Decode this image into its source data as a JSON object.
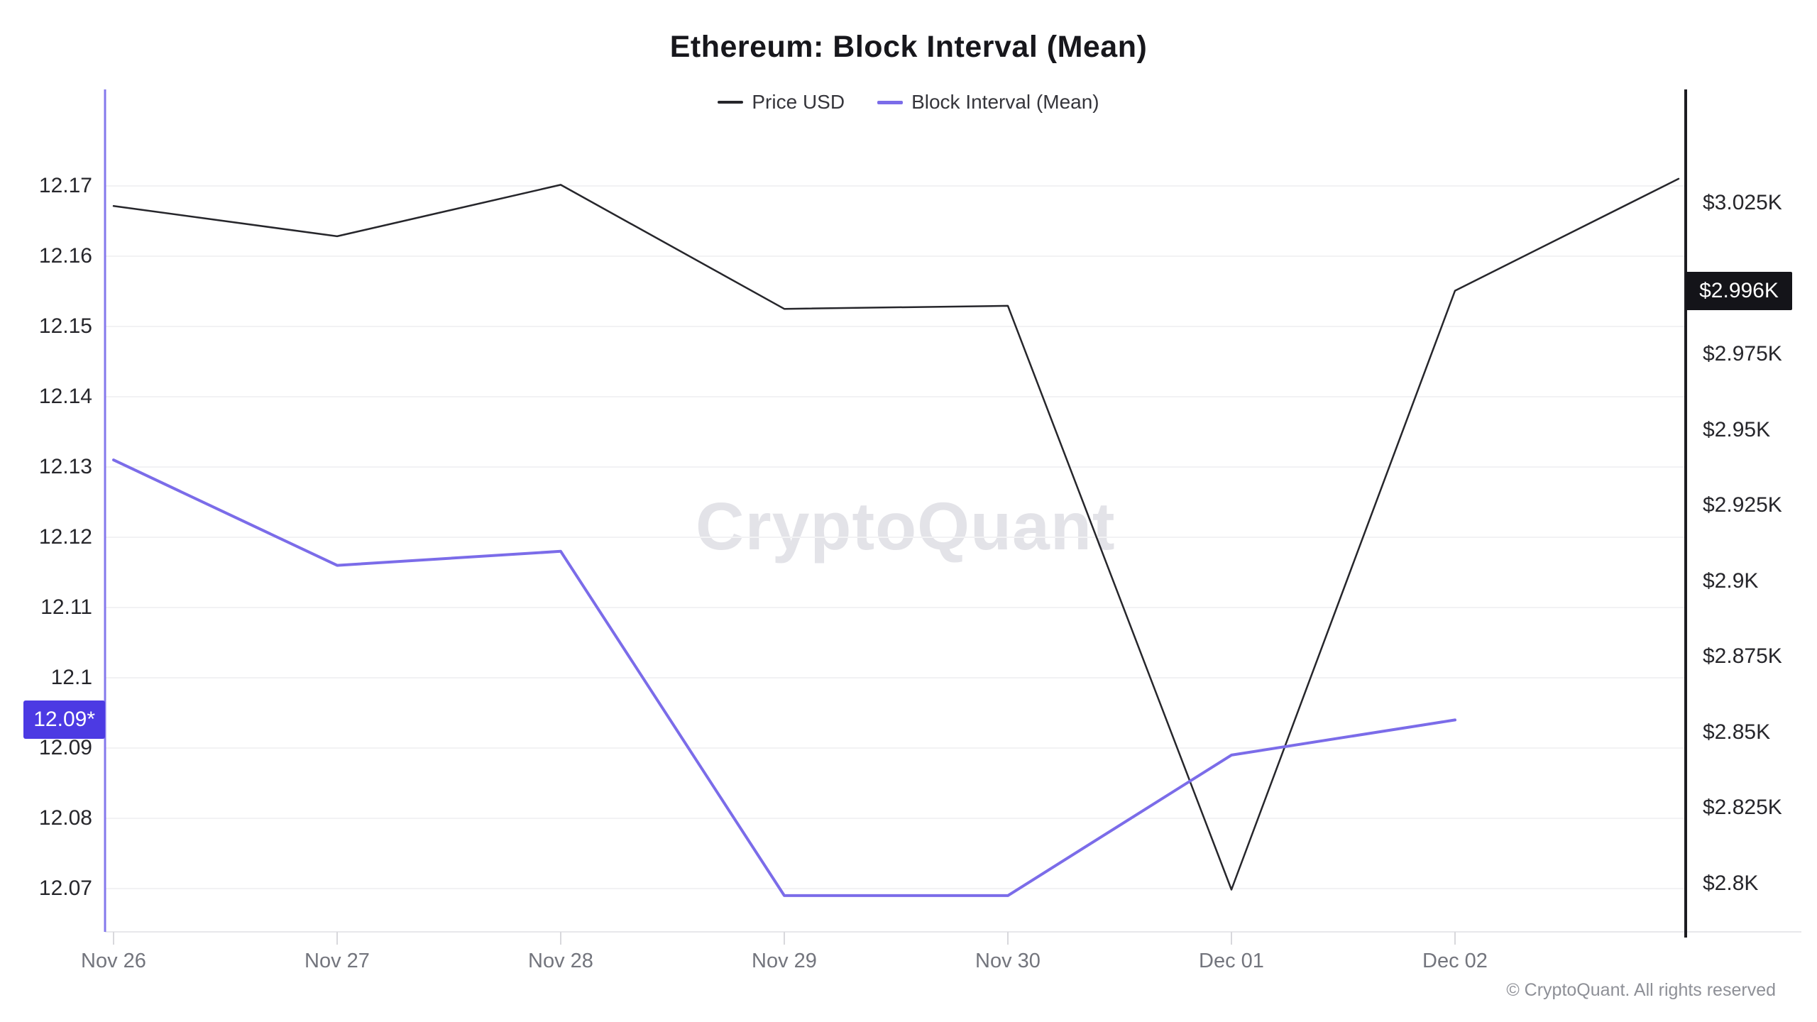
{
  "title": "Ethereum: Block Interval (Mean)",
  "legend": [
    {
      "label": "Price USD",
      "color": "#26262b"
    },
    {
      "label": "Block Interval (Mean)",
      "color": "#7b6ce9"
    }
  ],
  "watermark": "CryptoQuant",
  "footer": "© CryptoQuant. All rights reserved",
  "badges": {
    "left": {
      "text": "12.09*",
      "value": 12.094,
      "bg": "#4c3ae3"
    },
    "right": {
      "text": "$2.996K",
      "value": 2.996,
      "bg": "#141419"
    }
  },
  "colors": {
    "grid": "#f2f2f4",
    "x_axis_line": "#e8e8eb",
    "x_tick": "#d8d8dc",
    "left_axis_line": "#8478ec",
    "right_axis_line": "#1c1c21",
    "price_line": "#26262b",
    "interval_line": "#7b6ce9"
  },
  "chart_data": {
    "type": "line",
    "title": "Ethereum: Block Interval (Mean)",
    "legend_position": "top-center",
    "grid": true,
    "x_labels": [
      "Nov 26",
      "Nov 27",
      "Nov 28",
      "Nov 29",
      "Nov 30",
      "Dec 01",
      "Dec 02"
    ],
    "series": [
      {
        "name": "Price USD",
        "axis": "right",
        "unit": "USD (thousands)",
        "color": "#26262b",
        "values": [
          3.024,
          3.014,
          3.031,
          2.99,
          2.991,
          2.798,
          2.996,
          3.033
        ],
        "extends_one_step_past_last_label": true
      },
      {
        "name": "Block Interval (Mean)",
        "axis": "left",
        "unit": "seconds",
        "color": "#7b6ce9",
        "values": [
          12.131,
          12.116,
          12.118,
          12.069,
          12.069,
          12.089,
          12.094
        ]
      }
    ],
    "y_axis_left": {
      "range": [
        12.064,
        12.184
      ],
      "ticks": [
        {
          "label": "12.17",
          "value": 12.17
        },
        {
          "label": "12.16",
          "value": 12.16
        },
        {
          "label": "12.15",
          "value": 12.15
        },
        {
          "label": "12.14",
          "value": 12.14
        },
        {
          "label": "12.13",
          "value": 12.13
        },
        {
          "label": "12.12",
          "value": 12.12
        },
        {
          "label": "12.11",
          "value": 12.11
        },
        {
          "label": "12.1",
          "value": 12.1
        },
        {
          "label": "12.09",
          "value": 12.09
        },
        {
          "label": "12.08",
          "value": 12.08
        },
        {
          "label": "12.07",
          "value": 12.07
        }
      ]
    },
    "y_axis_right": {
      "range": [
        2.784,
        3.063
      ],
      "ticks": [
        {
          "label": "$3.025K",
          "value": 3.025
        },
        {
          "label": "$2.975K",
          "value": 2.975
        },
        {
          "label": "$2.95K",
          "value": 2.95
        },
        {
          "label": "$2.925K",
          "value": 2.925
        },
        {
          "label": "$2.9K",
          "value": 2.9
        },
        {
          "label": "$2.875K",
          "value": 2.875
        },
        {
          "label": "$2.85K",
          "value": 2.85
        },
        {
          "label": "$2.825K",
          "value": 2.825
        },
        {
          "label": "$2.8K",
          "value": 2.8
        }
      ]
    }
  }
}
